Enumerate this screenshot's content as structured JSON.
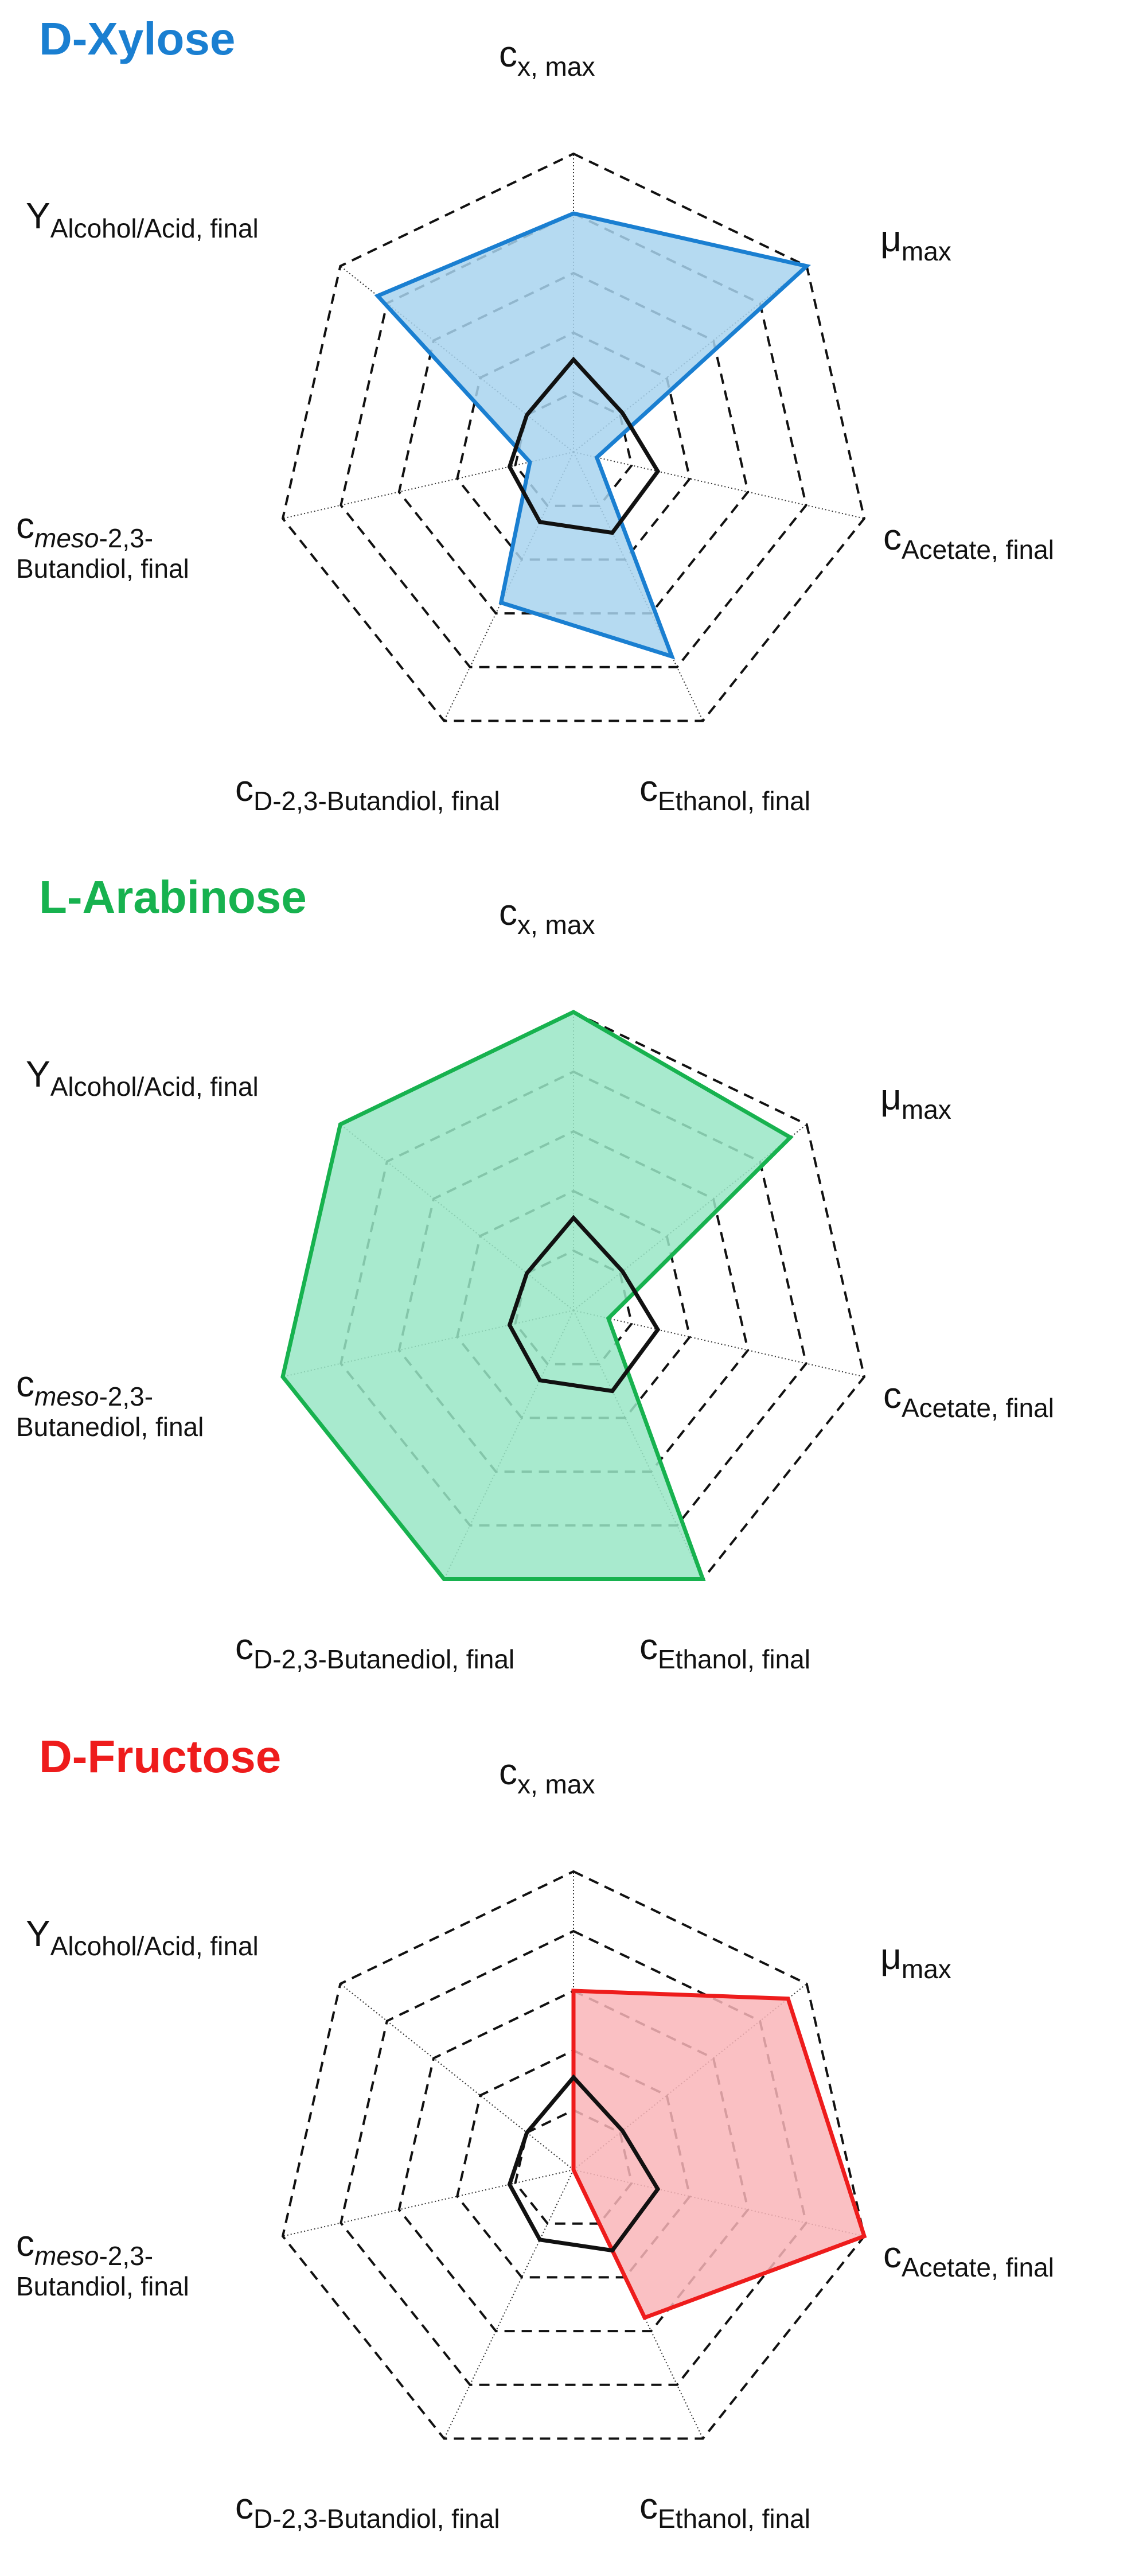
{
  "chart_data": [
    {
      "type": "radar",
      "title": "D-Xylose",
      "color": "#1a7fd1",
      "fill": "#a8d3ef",
      "axes": [
        {
          "main": "c",
          "sub": "x, max"
        },
        {
          "main": "μ",
          "sub": "max"
        },
        {
          "main": "c",
          "sub": "Acetate,  final"
        },
        {
          "main": "c",
          "sub": "Ethanol,  final"
        },
        {
          "main": "c",
          "sub": "D-2,3-Butandiol,  final"
        },
        {
          "main": "c",
          "sub_italic": "meso",
          "sub_rest": "-2,3-",
          "line2": "Butandiol,  final"
        },
        {
          "main": "Y",
          "sub": "Alcohol/Acid,  final"
        }
      ],
      "rings": 5,
      "series": [
        {
          "role": "substrate",
          "values": [
            0.8,
            1.0,
            0.08,
            0.76,
            0.56,
            0.15,
            0.84
          ]
        },
        {
          "role": "reference",
          "values": [
            0.31,
            0.21,
            0.29,
            0.3,
            0.26,
            0.22,
            0.2
          ]
        }
      ]
    },
    {
      "type": "radar",
      "title": "L-Arabinose",
      "color": "#17b24f",
      "fill": "#99e6c6",
      "axes": [
        {
          "main": "c",
          "sub": "x, max"
        },
        {
          "main": "μ",
          "sub": "max"
        },
        {
          "main": "c",
          "sub": "Acetate,  final"
        },
        {
          "main": "c",
          "sub": "Ethanol,  final"
        },
        {
          "main": "c",
          "sub": "D-2,3-Butanediol,  final"
        },
        {
          "main": "c",
          "sub_italic": "meso",
          "sub_rest": "-2,3-",
          "line2": "Butanediol,  final"
        },
        {
          "main": "Y",
          "sub": "Alcohol/Acid,  final"
        }
      ],
      "rings": 5,
      "series": [
        {
          "role": "substrate",
          "values": [
            1.0,
            0.93,
            0.12,
            1.0,
            1.0,
            1.0,
            1.0
          ]
        },
        {
          "role": "reference",
          "values": [
            0.31,
            0.21,
            0.29,
            0.3,
            0.26,
            0.22,
            0.2
          ]
        }
      ]
    },
    {
      "type": "radar",
      "title": "D-Fructose",
      "color": "#ee1c1c",
      "fill": "#f9b5b8",
      "axes": [
        {
          "main": "c",
          "sub": "x, max"
        },
        {
          "main": "μ",
          "sub": "max"
        },
        {
          "main": "c",
          "sub": "Acetate,  final"
        },
        {
          "main": "c",
          "sub": "Ethanol,  final"
        },
        {
          "main": "c",
          "sub": "D-2,3-Butandiol,  final"
        },
        {
          "main": "c",
          "sub_italic": "meso",
          "sub_rest": "-2,3-",
          "line2": "Butandiol,  final"
        },
        {
          "main": "Y",
          "sub": "Alcohol/Acid,  final"
        }
      ],
      "rings": 5,
      "series": [
        {
          "role": "substrate",
          "values": [
            0.6,
            0.92,
            1.0,
            0.55,
            0.0,
            0.0,
            0.0
          ]
        },
        {
          "role": "reference",
          "values": [
            0.31,
            0.21,
            0.29,
            0.3,
            0.26,
            0.22,
            0.2
          ]
        }
      ]
    }
  ]
}
